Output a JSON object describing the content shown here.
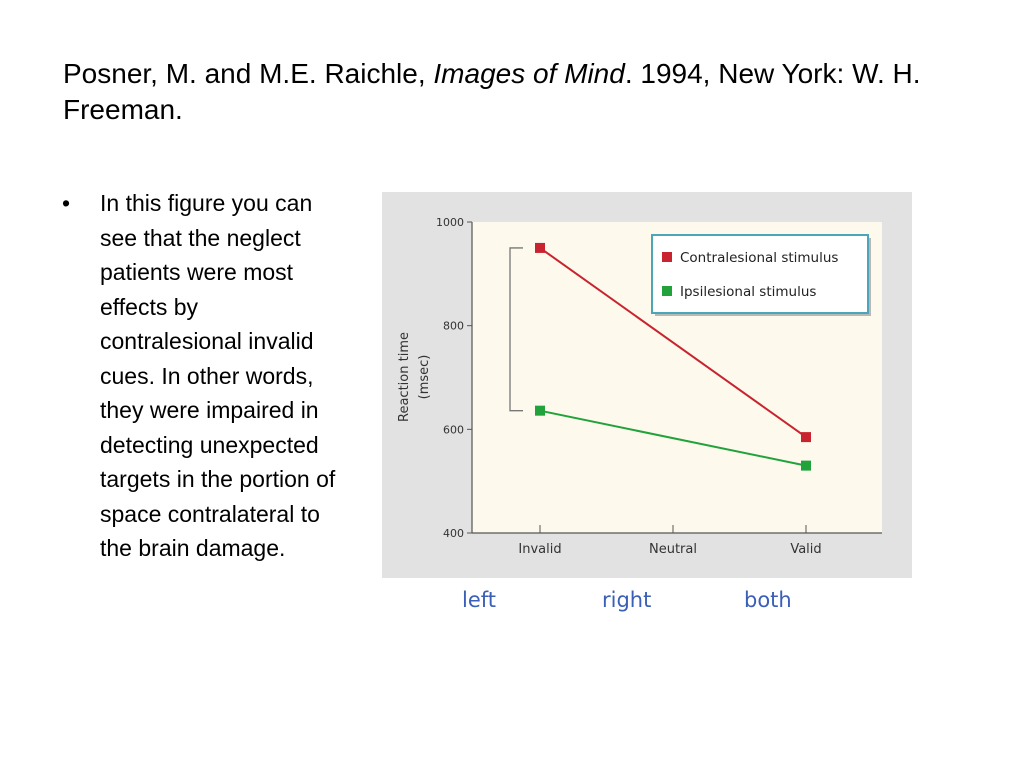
{
  "slide": {
    "title_pre": "Posner, M. and M.E. Raichle, ",
    "title_italic": "Images of Mind",
    "title_post": ". 1994, New York: W. H. Freeman.",
    "bullet_symbol": "•",
    "bullet_text": "In this figure you can see that the neglect patients were most effects by contralesional invalid cues.  In other words, they were impaired in detecting unexpected targets in the portion of space contralateral to the brain damage."
  },
  "scene_labels": [
    "left",
    "right",
    "both"
  ],
  "colors": {
    "figure_bg": "#e2e2e2",
    "plot_bg": "#fdf9ec",
    "contralesional": "#c8232e",
    "ipsilesional": "#21a23a",
    "legend_border": "#4aa6b8",
    "scene_label_text": "#3a5fb8"
  },
  "chart_data": {
    "type": "line",
    "x": [
      "Invalid",
      "Neutral",
      "Valid"
    ],
    "ylabel": [
      "Reaction time",
      "(msec)"
    ],
    "ylim": [
      400,
      1000
    ],
    "yticks": [
      400,
      600,
      800,
      1000
    ],
    "grid": false,
    "legend_position": "top-right",
    "series": [
      {
        "name": "Contralesional stimulus",
        "color": "#c8232e",
        "points": [
          [
            "Invalid",
            950
          ],
          [
            "Valid",
            585
          ]
        ]
      },
      {
        "name": "Ipsilesional stimulus",
        "color": "#21a23a",
        "points": [
          [
            "Invalid",
            636
          ],
          [
            "Valid",
            530
          ]
        ]
      }
    ]
  }
}
